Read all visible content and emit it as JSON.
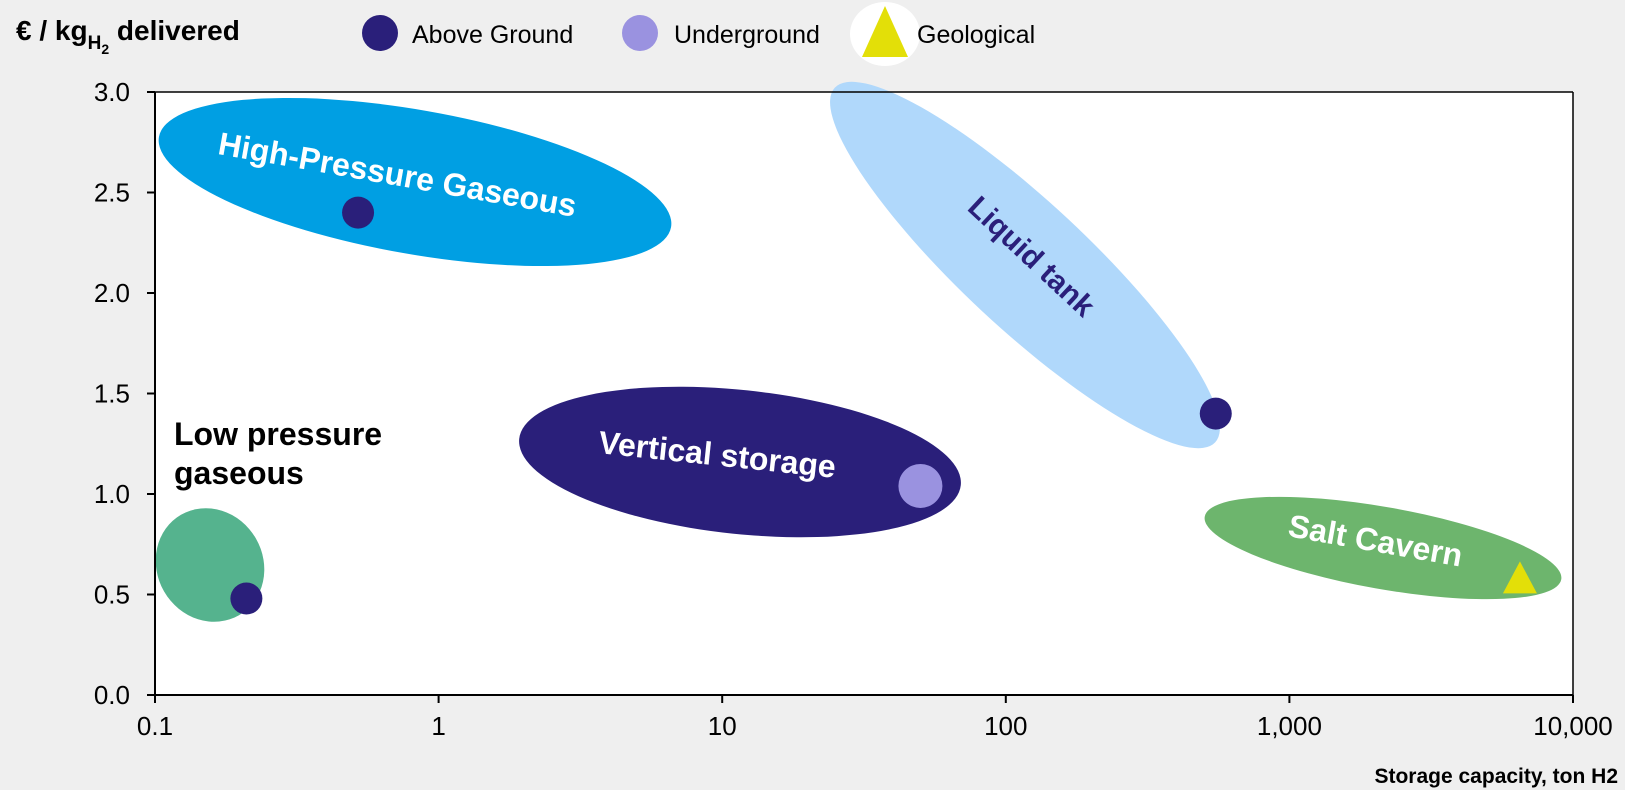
{
  "chart_data": {
    "type": "scatter",
    "ylabel_prefix": "€ / kg",
    "ylabel_sub": "H",
    "ylabel_subsub": "2",
    "ylabel_suffix": " delivered",
    "xlabel": "Storage capacity, ton H2",
    "x_scale": "log",
    "xlim": [
      0.1,
      10000
    ],
    "ylim": [
      0,
      3
    ],
    "x_ticks": [
      0.1,
      1,
      10,
      100,
      1000,
      10000
    ],
    "x_tick_labels": [
      "0.1",
      "1",
      "10",
      "100",
      "1,000",
      "10,000"
    ],
    "y_ticks": [
      0,
      0.5,
      1,
      1.5,
      2,
      2.5,
      3
    ],
    "y_tick_labels": [
      "0.0",
      "0.5",
      "1.0",
      "1.5",
      "2.0",
      "2.5",
      "3.0"
    ],
    "grid": false,
    "legend_position": "top",
    "legend": [
      {
        "label": "Above Ground",
        "marker": "circle",
        "color": "#2a1f7a"
      },
      {
        "label": "Underground",
        "marker": "circle",
        "color": "#9a92e0"
      },
      {
        "label": "Geological",
        "marker": "triangle",
        "color": "#e3df08"
      }
    ],
    "regions": [
      {
        "label_lines": [
          "High-Pressure Gaseous"
        ],
        "color": "#009fe3",
        "text_color": "#ffffff"
      },
      {
        "label_lines": [
          "Liquid tank"
        ],
        "color": "#b0d8fb",
        "text_color": "#2a1f7a"
      },
      {
        "label_lines": [
          "Vertical storage"
        ],
        "color": "#2a1f7a",
        "text_color": "#ffffff"
      },
      {
        "label_lines": [
          "Low pressure",
          "gaseous"
        ],
        "color": "#55b38e",
        "text_color": "#000000"
      },
      {
        "label_lines": [
          "Salt Cavern"
        ],
        "color": "#6db56d",
        "text_color": "#ffffff"
      }
    ],
    "points": [
      {
        "x": 0.52,
        "y": 2.4,
        "category": "Above Ground"
      },
      {
        "x": 0.21,
        "y": 0.48,
        "category": "Above Ground"
      },
      {
        "x": 550,
        "y": 1.4,
        "category": "Above Ground"
      },
      {
        "x": 50,
        "y": 1.04,
        "category": "Underground"
      },
      {
        "x": 6500,
        "y": 0.58,
        "category": "Geological"
      }
    ]
  },
  "colors": {
    "background": "#efefef",
    "plot_background": "#ffffff"
  }
}
